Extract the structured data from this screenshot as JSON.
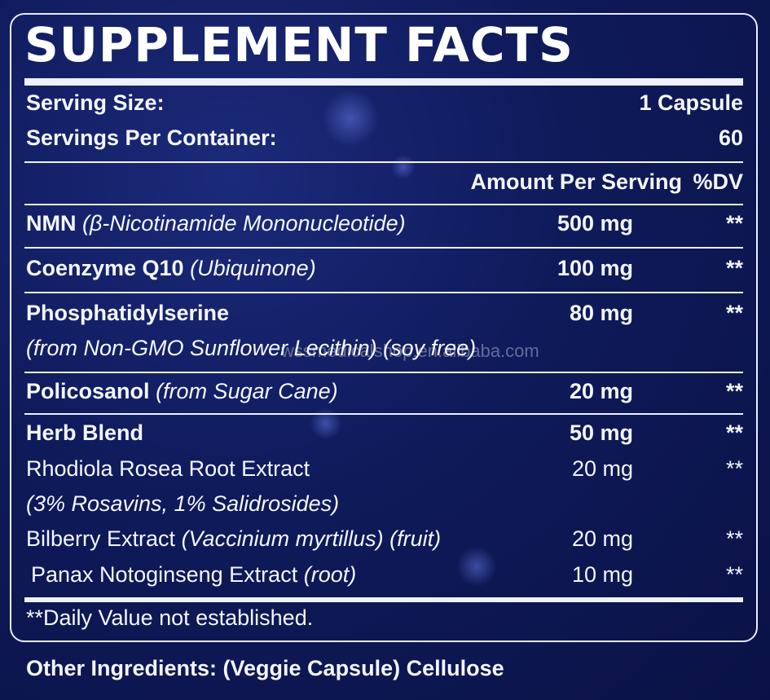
{
  "title": "SUPPLEMENT FACTS",
  "serving": {
    "size_label": "Serving Size:",
    "size_value": "1 Capsule",
    "per_container_label": "Servings Per Container:",
    "per_container_value": "60"
  },
  "header": {
    "amount": "Amount Per Serving",
    "dv": "%DV"
  },
  "ingredients": [
    {
      "name": "NMN",
      "detail": "(β-Nicotinamide Mononucleotide)",
      "amount": "500 mg",
      "dv": "**"
    },
    {
      "name": "Coenzyme Q10",
      "detail": "(Ubiquinone)",
      "amount": "100 mg",
      "dv": "**"
    },
    {
      "name": "Phosphatidylserine",
      "detail": "(from Non-GMO Sunflower Lecithin) (soy free)",
      "amount": "80 mg",
      "dv": "**"
    },
    {
      "name": "Policosanol",
      "detail": "(from Sugar Cane)",
      "amount": "20 mg",
      "dv": "**"
    },
    {
      "name": "Herb Blend",
      "amount": "50 mg",
      "dv": "**"
    },
    {
      "name": "Rhodiola Rosea Root Extract",
      "detail": "(3% Rosavins, 1% Salidrosides)",
      "amount": "20 mg",
      "dv": "**"
    },
    {
      "name": "Bilberry Extract",
      "detail": "(Vaccinium myrtillus) (fruit)",
      "amount": "20 mg",
      "dv": "**"
    },
    {
      "name": "Panax Notoginseng Extract",
      "detail": "(root)",
      "amount": "10 mg",
      "dv": "**"
    }
  ],
  "footnote": "**Daily Value not established.",
  "other_ingredients": "Other Ingredients: (Veggie Capsule) Cellulose",
  "watermark": "wssmedicalshop.en.alibaba.com"
}
